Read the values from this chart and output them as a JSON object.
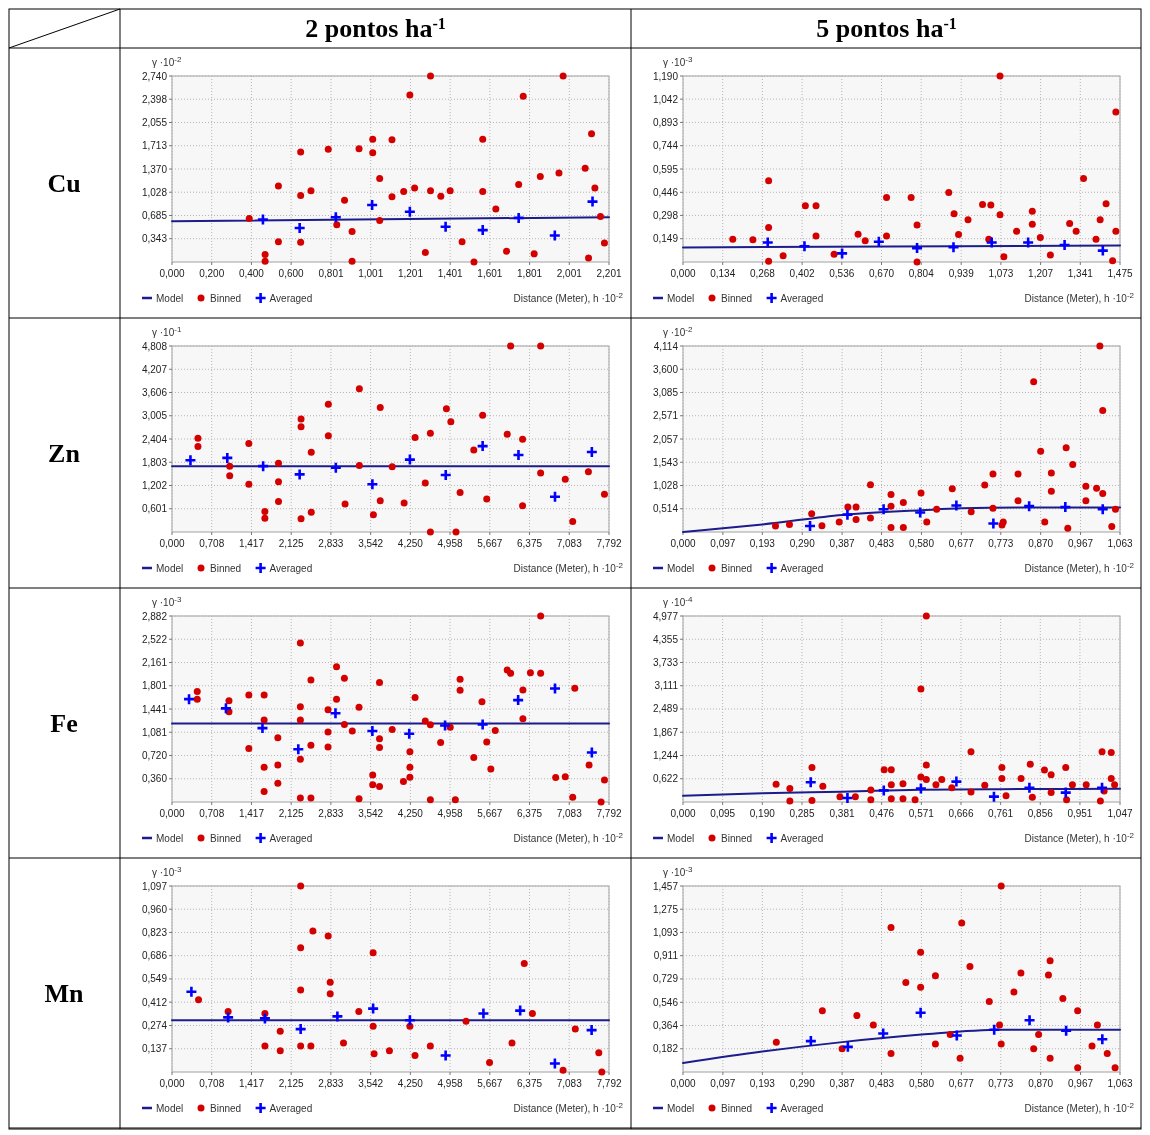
{
  "chart_data": [
    {
      "type": "scatter",
      "title": "2 pontos ha$^{-1}$",
      "annotations": [
        "Cu"
      ],
      "ylabel": "γ ·10$^{-2}$",
      "xlabel": "Distance (Meter), h ·10$^{-2}$",
      "grid": true,
      "legend": "bottom left",
      "xlim": [
        0,
        2.201
      ],
      "ylim": [
        0,
        2.74
      ],
      "xticks": [
        {
          "value": 0,
          "label": "0,000"
        },
        {
          "value": 0.2,
          "label": "0,200"
        },
        {
          "value": 0.4,
          "label": "0,400"
        },
        {
          "value": 0.6,
          "label": "0,600"
        },
        {
          "value": 0.801,
          "label": "0,801"
        },
        {
          "value": 1.001,
          "label": "1,001"
        },
        {
          "value": 1.201,
          "label": "1,201"
        },
        {
          "value": 1.401,
          "label": "1,401"
        },
        {
          "value": 1.601,
          "label": "1,601"
        },
        {
          "value": 1.801,
          "label": "1,801"
        },
        {
          "value": 2.001,
          "label": "2,001"
        },
        {
          "value": 2.201,
          "label": "2,201"
        }
      ],
      "yticks": [
        {
          "value": 0.343,
          "label": "0,343"
        },
        {
          "value": 0.685,
          "label": "0,685"
        },
        {
          "value": 1.028,
          "label": "1,028"
        },
        {
          "value": 1.37,
          "label": "1,370"
        },
        {
          "value": 1.713,
          "label": "1,713"
        },
        {
          "value": 2.055,
          "label": "2,055"
        },
        {
          "value": 2.398,
          "label": "2,398"
        },
        {
          "value": 2.74,
          "label": "2,740"
        }
      ],
      "series": [
        {
          "name": "Model",
          "type": "line",
          "color": "#1c1c8c",
          "x": [
            0,
            2.201
          ],
          "values": [
            0.6,
            0.66
          ]
        },
        {
          "name": "Binned",
          "type": "scatter",
          "marker": "circle",
          "color": "#d40000",
          "x": [
            0.389,
            0.469,
            0.469,
            0.536,
            0.536,
            0.648,
            0.648,
            0.648,
            0.7,
            0.787,
            0.83,
            0.869,
            0.907,
            0.942,
            1.011,
            1.011,
            1.046,
            1.046,
            1.108,
            1.108,
            1.167,
            1.198,
            1.222,
            1.302,
            1.302,
            1.276,
            1.354,
            1.401,
            1.565,
            1.565,
            1.631,
            1.746,
            1.769,
            1.855,
            1.949,
            1.97,
            2.081,
            2.113,
            2.13,
            2.158,
            2.178,
            1.824,
            1.685,
            1.461,
            1.521,
            0.907,
            2.098
          ],
          "values": [
            0.64,
            0.11,
            0.01,
            1.12,
            0.3,
            1.62,
            0.98,
            0.29,
            1.05,
            1.66,
            0.55,
            0.91,
            0.45,
            1.67,
            1.81,
            1.61,
            1.23,
            0.61,
            1.8,
            0.96,
            1.04,
            2.46,
            1.09,
            2.74,
            1.05,
            0.14,
            0.97,
            1.05,
            1.81,
            1.04,
            0.78,
            1.14,
            2.44,
            1.26,
            1.31,
            2.74,
            1.38,
            1.89,
            1.09,
            0.67,
            0.28,
            0.12,
            0.16,
            0.3,
            0,
            0.01,
            0.06
          ]
        },
        {
          "name": "Averaged",
          "type": "scatter",
          "marker": "cross",
          "color": "#0000ff",
          "x": [
            0.458,
            0.643,
            0.825,
            1.008,
            1.198,
            1.378,
            1.565,
            1.746,
            1.928,
            2.118
          ],
          "values": [
            0.626,
            0.5,
            0.66,
            0.84,
            0.74,
            0.52,
            0.47,
            0.65,
            0.39,
            0.89
          ]
        }
      ]
    },
    {
      "type": "scatter",
      "title": "5 pontos ha$^{-1}$",
      "ylabel": "γ ·10$^{-3}$",
      "xlabel": "Distance (Meter), h ·10$^{-2}$",
      "grid": true,
      "legend": "bottom left",
      "xlim": [
        0,
        1.475
      ],
      "ylim": [
        0,
        1.19
      ],
      "xticks": [
        {
          "value": 0,
          "label": "0,000"
        },
        {
          "value": 0.134,
          "label": "0,134"
        },
        {
          "value": 0.268,
          "label": "0,268"
        },
        {
          "value": 0.402,
          "label": "0,402"
        },
        {
          "value": 0.536,
          "label": "0,536"
        },
        {
          "value": 0.67,
          "label": "0,670"
        },
        {
          "value": 0.804,
          "label": "0,804"
        },
        {
          "value": 0.939,
          "label": "0,939"
        },
        {
          "value": 1.073,
          "label": "1,073"
        },
        {
          "value": 1.207,
          "label": "1,207"
        },
        {
          "value": 1.341,
          "label": "1,341"
        },
        {
          "value": 1.475,
          "label": "1,475"
        }
      ],
      "yticks": [
        {
          "value": 0.149,
          "label": "0,149"
        },
        {
          "value": 0.298,
          "label": "0,298"
        },
        {
          "value": 0.446,
          "label": "0,446"
        },
        {
          "value": 0.595,
          "label": "0,595"
        },
        {
          "value": 0.744,
          "label": "0,744"
        },
        {
          "value": 0.893,
          "label": "0,893"
        },
        {
          "value": 1.042,
          "label": "1,042"
        },
        {
          "value": 1.19,
          "label": "1,190"
        }
      ],
      "series": [
        {
          "name": "Model",
          "type": "line",
          "color": "#1c1c8c",
          "x": [
            0,
            1.475
          ],
          "values": [
            0.093,
            0.105
          ]
        },
        {
          "name": "Binned",
          "type": "scatter",
          "marker": "circle",
          "color": "#d40000",
          "x": [
            0.168,
            0.236,
            0.289,
            0.289,
            0.289,
            0.338,
            0.413,
            0.449,
            0.449,
            0.51,
            0.591,
            0.615,
            0.687,
            0.687,
            0.77,
            0.79,
            0.79,
            0.897,
            0.915,
            0.93,
            0.962,
            1.011,
            1.039,
            1.07,
            1.07,
            1.083,
            1.126,
            1.179,
            1.179,
            1.206,
            1.24,
            1.305,
            1.327,
            1.352,
            1.394,
            1.408,
            1.428,
            1.461,
            1.461,
            1.45,
            1.032
          ],
          "values": [
            0.146,
            0.142,
            0.52,
            0.221,
            0.004,
            0.04,
            0.36,
            0.36,
            0.166,
            0.049,
            0.178,
            0.136,
            0.413,
            0.166,
            0.413,
            0.237,
            0,
            0.445,
            0.308,
            0.176,
            0.271,
            0.368,
            0.364,
            1.19,
            0.302,
            0.034,
            0.196,
            0.324,
            0.241,
            0.156,
            0.045,
            0.247,
            0.196,
            0.534,
            0.146,
            0.271,
            0.372,
            0.959,
            0.196,
            0.008,
            0.146
          ]
        },
        {
          "name": "Averaged",
          "type": "scatter",
          "marker": "cross",
          "color": "#0000ff",
          "x": [
            0.286,
            0.41,
            0.537,
            0.661,
            0.79,
            0.913,
            1.042,
            1.165,
            1.288,
            1.417
          ],
          "values": [
            0.125,
            0.101,
            0.055,
            0.13,
            0.089,
            0.095,
            0.125,
            0.125,
            0.109,
            0.073
          ]
        }
      ]
    },
    {
      "type": "scatter",
      "annotations": [
        "Zn"
      ],
      "ylabel": "γ ·10$^{-1}$",
      "xlabel": "Distance (Meter), h ·10$^{-2}$",
      "grid": true,
      "legend": "bottom left",
      "xlim": [
        0,
        7.792
      ],
      "ylim": [
        0,
        4.808
      ],
      "xticks": [
        {
          "value": 0,
          "label": "0,000"
        },
        {
          "value": 0.708,
          "label": "0,708"
        },
        {
          "value": 1.417,
          "label": "1,417"
        },
        {
          "value": 2.125,
          "label": "2,125"
        },
        {
          "value": 2.833,
          "label": "2,833"
        },
        {
          "value": 3.542,
          "label": "3,542"
        },
        {
          "value": 4.25,
          "label": "4,250"
        },
        {
          "value": 4.958,
          "label": "4,958"
        },
        {
          "value": 5.667,
          "label": "5,667"
        },
        {
          "value": 6.375,
          "label": "6,375"
        },
        {
          "value": 7.083,
          "label": "7,083"
        },
        {
          "value": 7.792,
          "label": "7,792"
        }
      ],
      "yticks": [
        {
          "value": 0.601,
          "label": "0,601"
        },
        {
          "value": 1.202,
          "label": "1,202"
        },
        {
          "value": 1.803,
          "label": "1,803"
        },
        {
          "value": 2.404,
          "label": "2,404"
        },
        {
          "value": 3.005,
          "label": "3,005"
        },
        {
          "value": 3.606,
          "label": "3,606"
        },
        {
          "value": 4.207,
          "label": "4,207"
        },
        {
          "value": 4.808,
          "label": "4,808"
        }
      ],
      "series": [
        {
          "name": "Model",
          "type": "line",
          "color": "#1c1c8c",
          "x": [
            0,
            7.792
          ],
          "values": [
            1.7,
            1.7
          ]
        },
        {
          "name": "Binned",
          "type": "scatter",
          "marker": "circle",
          "color": "#d40000",
          "x": [
            0.463,
            0.463,
            1.029,
            1.029,
            1.37,
            1.37,
            1.656,
            1.656,
            1.899,
            1.899,
            1.899,
            2.301,
            2.301,
            2.301,
            2.483,
            2.483,
            2.788,
            2.788,
            3.086,
            3.341,
            3.341,
            3.591,
            3.713,
            3.713,
            3.926,
            4.139,
            4.334,
            4.516,
            4.607,
            4.607,
            4.893,
            4.972,
            5.064,
            5.137,
            5.381,
            5.539,
            5.612,
            6.038,
            6.573,
            5.977,
            6.251,
            6.251,
            6.573,
            7.145,
            7.425,
            7.711,
            7.012
          ],
          "values": [
            2.426,
            2.213,
            1.702,
            1.455,
            2.289,
            1.234,
            0.528,
            0.357,
            1.779,
            0.791,
            1.302,
            2.919,
            2.723,
            0.34,
            2.06,
            0.511,
            3.302,
            2.485,
            0.723,
            3.702,
            1.719,
            0.443,
            3.217,
            0.809,
            1.685,
            0.749,
            2.443,
            1.268,
            0,
            2.553,
            3.183,
            2.851,
            0,
            1.021,
            2.119,
            3.021,
            0.851,
            4.808,
            4.808,
            2.528,
            2.4,
            0.681,
            1.523,
            0.272,
            1.557,
            0.979,
            1.362
          ]
        },
        {
          "name": "Averaged",
          "type": "scatter",
          "marker": "cross",
          "color": "#0000ff",
          "x": [
            0.329,
            0.986,
            1.625,
            2.276,
            2.921,
            3.573,
            4.242,
            4.881,
            5.539,
            6.178,
            6.829,
            7.486
          ],
          "values": [
            1.855,
            1.915,
            1.702,
            1.489,
            1.66,
            1.234,
            1.872,
            1.472,
            2.221,
            1.991,
            0.911,
            2.068
          ]
        }
      ]
    },
    {
      "type": "scatter",
      "ylabel": "γ ·10$^{-2}$",
      "xlabel": "Distance (Meter), h ·10$^{-2}$",
      "grid": true,
      "legend": "bottom left",
      "xlim": [
        0,
        1.063
      ],
      "ylim": [
        0,
        4.114
      ],
      "xticks": [
        {
          "value": 0,
          "label": "0,000"
        },
        {
          "value": 0.097,
          "label": "0,097"
        },
        {
          "value": 0.193,
          "label": "0,193"
        },
        {
          "value": 0.29,
          "label": "0,290"
        },
        {
          "value": 0.387,
          "label": "0,387"
        },
        {
          "value": 0.483,
          "label": "0,483"
        },
        {
          "value": 0.58,
          "label": "0,580"
        },
        {
          "value": 0.677,
          "label": "0,677"
        },
        {
          "value": 0.773,
          "label": "0,773"
        },
        {
          "value": 0.87,
          "label": "0,870"
        },
        {
          "value": 0.967,
          "label": "0,967"
        },
        {
          "value": 1.063,
          "label": "1,063"
        }
      ],
      "yticks": [
        {
          "value": 0.514,
          "label": "0,514"
        },
        {
          "value": 1.028,
          "label": "1,028"
        },
        {
          "value": 1.543,
          "label": "1,543"
        },
        {
          "value": 2.057,
          "label": "2,057"
        },
        {
          "value": 2.571,
          "label": "2,571"
        },
        {
          "value": 3.085,
          "label": "3,085"
        },
        {
          "value": 3.6,
          "label": "3,600"
        },
        {
          "value": 4.114,
          "label": "4,114"
        }
      ],
      "series": [
        {
          "name": "Model",
          "type": "line",
          "color": "#1c1c8c",
          "x": [
            0,
            0.097,
            0.193,
            0.387,
            0.58,
            0.677,
            0.87,
            1.063
          ],
          "values": [
            0,
            0.084,
            0.167,
            0.377,
            0.481,
            0.523,
            0.544,
            0.544
          ]
        },
        {
          "name": "Binned",
          "type": "scatter",
          "marker": "circle",
          "color": "#d40000",
          "x": [
            0.225,
            0.259,
            0.313,
            0.338,
            0.38,
            0.401,
            0.421,
            0.421,
            0.456,
            0.456,
            0.506,
            0.506,
            0.506,
            0.536,
            0.536,
            0.579,
            0.593,
            0.617,
            0.655,
            0.701,
            0.734,
            0.754,
            0.754,
            0.776,
            0.815,
            0.815,
            0.853,
            0.87,
            0.896,
            0.896,
            0.932,
            0.948,
            0.98,
            0.98,
            1.006,
            1.014,
            1.021,
            1.021,
            1.043,
            1.052,
            0.936,
            0.88,
            0.779
          ],
          "values": [
            0.132,
            0.167,
            0.404,
            0.139,
            0.223,
            0.551,
            0.551,
            0.279,
            1.046,
            0.307,
            0.83,
            0.572,
            0.098,
            0.655,
            0.098,
            0.865,
            0.223,
            0.502,
            0.955,
            0.446,
            1.039,
            1.283,
            0.523,
            0.153,
            1.283,
            0.69,
            3.326,
            1.785,
            1.304,
            0.9,
            1.862,
            1.492,
            1.011,
            0.69,
            0.969,
            4.114,
            2.685,
            0.851,
            0.119,
            0.502,
            0.084,
            0.223,
            0.223
          ]
        },
        {
          "name": "Averaged",
          "type": "scatter",
          "marker": "cross",
          "color": "#0000ff",
          "x": [
            0.309,
            0.4,
            0.488,
            0.577,
            0.665,
            0.755,
            0.842,
            0.93,
            1.021
          ],
          "values": [
            0.132,
            0.384,
            0.502,
            0.432,
            0.586,
            0.188,
            0.572,
            0.551,
            0.502
          ]
        }
      ]
    },
    {
      "type": "scatter",
      "annotations": [
        "Fe"
      ],
      "ylabel": "γ ·10$^{-3}$",
      "xlabel": "Distance (Meter), h ·10$^{-2}$",
      "grid": true,
      "legend": "bottom left",
      "xlim": [
        0,
        7.792
      ],
      "ylim": [
        0,
        2.882
      ],
      "xticks": [
        {
          "value": 0,
          "label": "0,000"
        },
        {
          "value": 0.708,
          "label": "0,708"
        },
        {
          "value": 1.417,
          "label": "1,417"
        },
        {
          "value": 2.125,
          "label": "2,125"
        },
        {
          "value": 2.833,
          "label": "2,833"
        },
        {
          "value": 3.542,
          "label": "3,542"
        },
        {
          "value": 4.25,
          "label": "4,250"
        },
        {
          "value": 4.958,
          "label": "4,958"
        },
        {
          "value": 5.667,
          "label": "5,667"
        },
        {
          "value": 6.375,
          "label": "6,375"
        },
        {
          "value": 7.083,
          "label": "7,083"
        },
        {
          "value": 7.792,
          "label": "7,792"
        }
      ],
      "yticks": [
        {
          "value": 0.36,
          "label": "0,360"
        },
        {
          "value": 0.72,
          "label": "0,720"
        },
        {
          "value": 1.081,
          "label": "1,081"
        },
        {
          "value": 1.441,
          "label": "1,441"
        },
        {
          "value": 1.801,
          "label": "1,801"
        },
        {
          "value": 2.161,
          "label": "2,161"
        },
        {
          "value": 2.522,
          "label": "2,522"
        },
        {
          "value": 2.882,
          "label": "2,882"
        }
      ],
      "series": [
        {
          "name": "Model",
          "type": "line",
          "color": "#1c1c8c",
          "x": [
            0,
            7.792
          ],
          "values": [
            1.216,
            1.216
          ]
        },
        {
          "name": "Binned",
          "type": "scatter",
          "marker": "circle",
          "color": "#d40000",
          "x": [
            0.45,
            0.45,
            1.016,
            1.016,
            1.37,
            1.37,
            1.643,
            1.643,
            1.643,
            1.643,
            1.887,
            1.887,
            1.887,
            2.289,
            2.289,
            2.289,
            2.289,
            2.289,
            2.477,
            2.477,
            2.477,
            2.782,
            2.782,
            2.782,
            2.934,
            2.934,
            3.074,
            3.074,
            3.214,
            3.335,
            3.335,
            3.579,
            3.579,
            3.7,
            3.7,
            3.7,
            3.7,
            3.926,
            4.127,
            4.242,
            4.242,
            4.242,
            4.334,
            4.516,
            4.607,
            4.607,
            4.79,
            4.961,
            5.052,
            5.137,
            5.137,
            5.381,
            5.527,
            5.612,
            5.685,
            5.764,
            5.977,
            6.038,
            6.257,
            6.257,
            6.391,
            6.573,
            6.573,
            6.841,
            7.012,
            7.145,
            7.182,
            7.437,
            7.651,
            7.711
          ],
          "values": [
            1.712,
            1.594,
            1.569,
            1.4,
            1.656,
            0.828,
            1.656,
            1.272,
            0.537,
            0.164,
            0.996,
            0.572,
            0.291,
            2.463,
            1.477,
            1.272,
            0.664,
            0.061,
            1.891,
            0.879,
            0.061,
            1.431,
            1.083,
            0.853,
            2.095,
            1.594,
            1.916,
            1.201,
            1.099,
            1.467,
            0.051,
            0.419,
            0.266,
            1.85,
            0.981,
            0.843,
            0.24,
            1.124,
            0.317,
            0.777,
            0.537,
            0.383,
            1.62,
            1.257,
            1.196,
            0.036,
            0.92,
            1.16,
            0.036,
            1.901,
            1.732,
            0.69,
            1.553,
            0.93,
            0.511,
            1.109,
            2.044,
            1.993,
            1.737,
            1.288,
            2.003,
            2.882,
            1.993,
            0.378,
            0.393,
            0.072,
            1.763,
            0.572,
            0,
            0.342
          ]
        },
        {
          "name": "Averaged",
          "type": "scatter",
          "marker": "cross",
          "color": "#0000ff",
          "x": [
            0.304,
            0.962,
            1.613,
            2.252,
            2.915,
            3.573,
            4.23,
            4.869,
            5.539,
            6.172,
            6.829,
            7.486
          ],
          "values": [
            1.594,
            1.451,
            1.145,
            0.818,
            1.375,
            1.099,
            1.058,
            1.185,
            1.201,
            1.579,
            1.758,
            0.766
          ]
        }
      ]
    },
    {
      "type": "scatter",
      "ylabel": "γ ·10$^{-4}$",
      "xlabel": "Distance (Meter), h ·10$^{-2}$",
      "grid": true,
      "legend": "bottom left",
      "xlim": [
        0,
        1.047
      ],
      "ylim": [
        0,
        4.977
      ],
      "xticks": [
        {
          "value": 0,
          "label": "0,000"
        },
        {
          "value": 0.095,
          "label": "0,095"
        },
        {
          "value": 0.19,
          "label": "0,190"
        },
        {
          "value": 0.285,
          "label": "0,285"
        },
        {
          "value": 0.381,
          "label": "0,381"
        },
        {
          "value": 0.476,
          "label": "0,476"
        },
        {
          "value": 0.571,
          "label": "0,571"
        },
        {
          "value": 0.666,
          "label": "0,666"
        },
        {
          "value": 0.761,
          "label": "0,761"
        },
        {
          "value": 0.856,
          "label": "0,856"
        },
        {
          "value": 0.951,
          "label": "0,951"
        },
        {
          "value": 1.047,
          "label": "1,047"
        }
      ],
      "yticks": [
        {
          "value": 0.622,
          "label": "0,622"
        },
        {
          "value": 1.244,
          "label": "1,244"
        },
        {
          "value": 1.867,
          "label": "1,867"
        },
        {
          "value": 2.489,
          "label": "2,489"
        },
        {
          "value": 3.111,
          "label": "3,111"
        },
        {
          "value": 3.733,
          "label": "3,733"
        },
        {
          "value": 4.355,
          "label": "4,355"
        },
        {
          "value": 4.977,
          "label": "4,977"
        }
      ],
      "series": [
        {
          "name": "Model",
          "type": "line",
          "color": "#1c1c8c",
          "x": [
            0,
            0.19,
            0.381,
            0.571,
            0.761,
            1.047
          ],
          "values": [
            0.168,
            0.235,
            0.277,
            0.327,
            0.344,
            0.352
          ]
        },
        {
          "name": "Binned",
          "type": "scatter",
          "marker": "circle",
          "color": "#d40000",
          "x": [
            0.223,
            0.256,
            0.256,
            0.309,
            0.309,
            0.335,
            0.376,
            0.413,
            0.45,
            0.45,
            0.482,
            0.499,
            0.499,
            0.499,
            0.527,
            0.527,
            0.556,
            0.57,
            0.57,
            0.583,
            0.583,
            0.583,
            0.606,
            0.62,
            0.644,
            0.69,
            0.69,
            0.723,
            0.764,
            0.764,
            0.774,
            0.81,
            0.832,
            0.837,
            0.866,
            0.882,
            0.882,
            0.917,
            0.933,
            0.966,
            1.004,
            1.026,
            1.026,
            1.034,
            1.0,
            1.009,
            0.919
          ],
          "values": [
            0.478,
            0.361,
            0.025,
            0.923,
            0.042,
            0.42,
            0.143,
            0.143,
            0.319,
            0.059,
            0.864,
            0.864,
            0.462,
            0.084,
            0.487,
            0.084,
            0.059,
            0.671,
            3.021,
            4.977,
            0.99,
            0.604,
            0.462,
            0.604,
            0.378,
            1.343,
            0.269,
            0.445,
            0.923,
            0.629,
            0.168,
            0.629,
            1.007,
            0.126,
            0.856,
            0.73,
            0.252,
            0.923,
            0.462,
            0.462,
            1.343,
            1.326,
            0.629,
            0.462,
            0.025,
            0.294,
            0.059
          ]
        },
        {
          "name": "Averaged",
          "type": "scatter",
          "marker": "cross",
          "color": "#0000ff",
          "x": [
            0.306,
            0.394,
            0.481,
            0.57,
            0.655,
            0.745,
            0.83,
            0.917,
            1.004
          ],
          "values": [
            0.529,
            0.109,
            0.311,
            0.361,
            0.546,
            0.143,
            0.378,
            0.252,
            0.378
          ]
        }
      ]
    },
    {
      "type": "scatter",
      "annotations": [
        "Mn"
      ],
      "ylabel": "γ ·10$^{-3}$",
      "xlabel": "Distance (Meter), h ·10$^{-2}$",
      "grid": true,
      "legend": "bottom left",
      "xlim": [
        0,
        7.792
      ],
      "ylim": [
        0,
        1.097
      ],
      "xticks": [
        {
          "value": 0,
          "label": "0,000"
        },
        {
          "value": 0.708,
          "label": "0,708"
        },
        {
          "value": 1.417,
          "label": "1,417"
        },
        {
          "value": 2.125,
          "label": "2,125"
        },
        {
          "value": 2.833,
          "label": "2,833"
        },
        {
          "value": 3.542,
          "label": "3,542"
        },
        {
          "value": 4.25,
          "label": "4,250"
        },
        {
          "value": 4.958,
          "label": "4,958"
        },
        {
          "value": 5.667,
          "label": "5,667"
        },
        {
          "value": 6.375,
          "label": "6,375"
        },
        {
          "value": 7.083,
          "label": "7,083"
        },
        {
          "value": 7.792,
          "label": "7,792"
        }
      ],
      "yticks": [
        {
          "value": 0.137,
          "label": "0,137"
        },
        {
          "value": 0.274,
          "label": "0,274"
        },
        {
          "value": 0.412,
          "label": "0,412"
        },
        {
          "value": 0.549,
          "label": "0,549"
        },
        {
          "value": 0.686,
          "label": "0,686"
        },
        {
          "value": 0.823,
          "label": "0,823"
        },
        {
          "value": 0.96,
          "label": "0,960"
        },
        {
          "value": 1.097,
          "label": "1,097"
        }
      ],
      "series": [
        {
          "name": "Model",
          "type": "line",
          "color": "#1c1c8c",
          "x": [
            0,
            7.792
          ],
          "values": [
            0.305,
            0.305
          ]
        },
        {
          "name": "Binned",
          "type": "scatter",
          "marker": "circle",
          "color": "#d40000",
          "x": [
            0.473,
            1.001,
            1.657,
            1.657,
            1.93,
            1.93,
            2.294,
            2.294,
            2.294,
            2.294,
            2.476,
            2.512,
            2.785,
            2.821,
            2.821,
            3.058,
            3.331,
            3.586,
            3.586,
            3.604,
            3.877,
            4.242,
            4.333,
            4.606,
            5.243,
            5.662,
            6.062,
            6.281,
            6.426,
            6.973,
            7.191,
            7.61,
            7.664
          ],
          "values": [
            0.426,
            0.357,
            0.345,
            0.154,
            0.241,
            0.125,
            1.097,
            0.733,
            0.484,
            0.154,
            0.154,
            0.831,
            0.802,
            0.53,
            0.461,
            0.171,
            0.357,
            0.704,
            0.27,
            0.108,
            0.125,
            0.27,
            0.097,
            0.154,
            0.299,
            0.056,
            0.171,
            0.64,
            0.345,
            0.01,
            0.253,
            0.113,
            0
          ]
        },
        {
          "name": "Averaged",
          "type": "scatter",
          "marker": "cross",
          "color": "#0000ff",
          "x": [
            0.346,
            1.001,
            1.657,
            2.294,
            2.949,
            3.586,
            4.242,
            4.879,
            5.553,
            6.208,
            6.827,
            7.482
          ],
          "values": [
            0.473,
            0.322,
            0.316,
            0.253,
            0.328,
            0.374,
            0.305,
            0.097,
            0.345,
            0.362,
            0.05,
            0.247
          ]
        }
      ]
    },
    {
      "type": "scatter",
      "ylabel": "γ ·10$^{-3}$",
      "xlabel": "Distance (Meter), h ·10$^{-2}$",
      "grid": true,
      "legend": "bottom left",
      "xlim": [
        0,
        1.063
      ],
      "ylim": [
        0,
        1.457
      ],
      "xticks": [
        {
          "value": 0,
          "label": "0,000"
        },
        {
          "value": 0.097,
          "label": "0,097"
        },
        {
          "value": 0.193,
          "label": "0,193"
        },
        {
          "value": 0.29,
          "label": "0,290"
        },
        {
          "value": 0.387,
          "label": "0,387"
        },
        {
          "value": 0.483,
          "label": "0,483"
        },
        {
          "value": 0.58,
          "label": "0,580"
        },
        {
          "value": 0.677,
          "label": "0,677"
        },
        {
          "value": 0.773,
          "label": "0,773"
        },
        {
          "value": 0.87,
          "label": "0,870"
        },
        {
          "value": 0.967,
          "label": "0,967"
        },
        {
          "value": 1.063,
          "label": "1,063"
        }
      ],
      "yticks": [
        {
          "value": 0.182,
          "label": "0,182"
        },
        {
          "value": 0.364,
          "label": "0,364"
        },
        {
          "value": 0.546,
          "label": "0,546"
        },
        {
          "value": 0.729,
          "label": "0,729"
        },
        {
          "value": 0.911,
          "label": "0,911"
        },
        {
          "value": 1.093,
          "label": "1,093"
        },
        {
          "value": 1.275,
          "label": "1,275"
        },
        {
          "value": 1.457,
          "label": "1,457"
        }
      ],
      "series": [
        {
          "name": "Model",
          "type": "line",
          "color": "#1c1c8c",
          "x": [
            0,
            0.193,
            0.387,
            0.58,
            0.773,
            1.063
          ],
          "values": [
            0.071,
            0.16,
            0.234,
            0.293,
            0.331,
            0.331
          ]
        },
        {
          "name": "Binned",
          "type": "scatter",
          "marker": "circle",
          "color": "#d40000",
          "x": [
            0.227,
            0.339,
            0.387,
            0.423,
            0.463,
            0.506,
            0.506,
            0.542,
            0.578,
            0.578,
            0.614,
            0.614,
            0.65,
            0.678,
            0.698,
            0.745,
            0.774,
            0.774,
            0.805,
            0.822,
            0.853,
            0.889,
            0.893,
            0.893,
            0.924,
            0.96,
            0.96,
            0.995,
            1.008,
            1.032,
            1.051,
            0.77,
            0.674,
            0.865
          ],
          "values": [
            0.234,
            0.479,
            0.182,
            0.442,
            0.368,
            1.132,
            0.145,
            0.701,
            0.939,
            0.664,
            0.753,
            0.219,
            0.293,
            1.168,
            0.827,
            0.553,
            1.457,
            0.219,
            0.627,
            0.775,
            0.182,
            0.76,
            0.871,
            0.108,
            0.575,
            0.479,
            0.034,
            0.204,
            0.368,
            0.145,
            0.034,
            0.368,
            0.108,
            0.293
          ]
        },
        {
          "name": "Averaged",
          "type": "scatter",
          "marker": "cross",
          "color": "#0000ff",
          "x": [
            0.311,
            0.401,
            0.487,
            0.578,
            0.666,
            0.757,
            0.843,
            0.932,
            1.02
          ],
          "values": [
            0.242,
            0.197,
            0.301,
            0.464,
            0.286,
            0.331,
            0.405,
            0.323,
            0.256
          ]
        }
      ]
    }
  ]
}
